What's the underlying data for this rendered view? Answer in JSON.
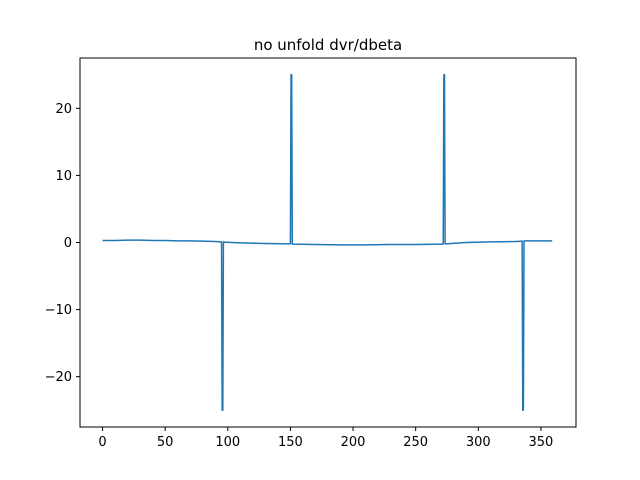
{
  "chart_data": {
    "type": "line",
    "title": "no unfold dvr/dbeta",
    "xlabel": "",
    "ylabel": "",
    "xlim": [
      -18,
      378
    ],
    "ylim": [
      -27.5,
      27.5
    ],
    "xticks": [
      0,
      50,
      100,
      150,
      200,
      250,
      300,
      350
    ],
    "yticks": [
      -20,
      -10,
      0,
      10,
      20
    ],
    "xtick_labels": [
      "0",
      "50",
      "100",
      "150",
      "200",
      "250",
      "300",
      "350"
    ],
    "ytick_labels": [
      "−20",
      "−10",
      "0",
      "10",
      "20"
    ],
    "grid": false,
    "line_color": "#1f77b4",
    "series": [
      {
        "x": [
          0,
          10,
          20,
          30,
          40,
          50,
          60,
          70,
          80,
          90,
          95,
          95.5,
          96,
          96.5,
          97,
          110,
          130,
          149,
          150,
          150.5,
          151,
          151.5,
          152,
          170,
          190,
          210,
          230,
          250,
          271,
          272,
          272.5,
          273,
          273.5,
          274,
          290,
          310,
          330,
          335,
          335.5,
          336,
          336.5,
          337,
          345,
          359
        ],
        "y": [
          0.3,
          0.3,
          0.35,
          0.35,
          0.3,
          0.3,
          0.25,
          0.25,
          0.2,
          0.15,
          0.1,
          -25,
          -25,
          0.1,
          0.05,
          -0.05,
          -0.15,
          -0.2,
          -0.2,
          25,
          25,
          -0.2,
          -0.25,
          -0.3,
          -0.35,
          -0.35,
          -0.3,
          -0.3,
          -0.25,
          -0.25,
          25,
          25,
          -0.2,
          -0.2,
          0,
          0.1,
          0.15,
          0.2,
          -25,
          -25,
          0.25,
          0.25,
          0.25,
          0.25
        ]
      }
    ]
  }
}
